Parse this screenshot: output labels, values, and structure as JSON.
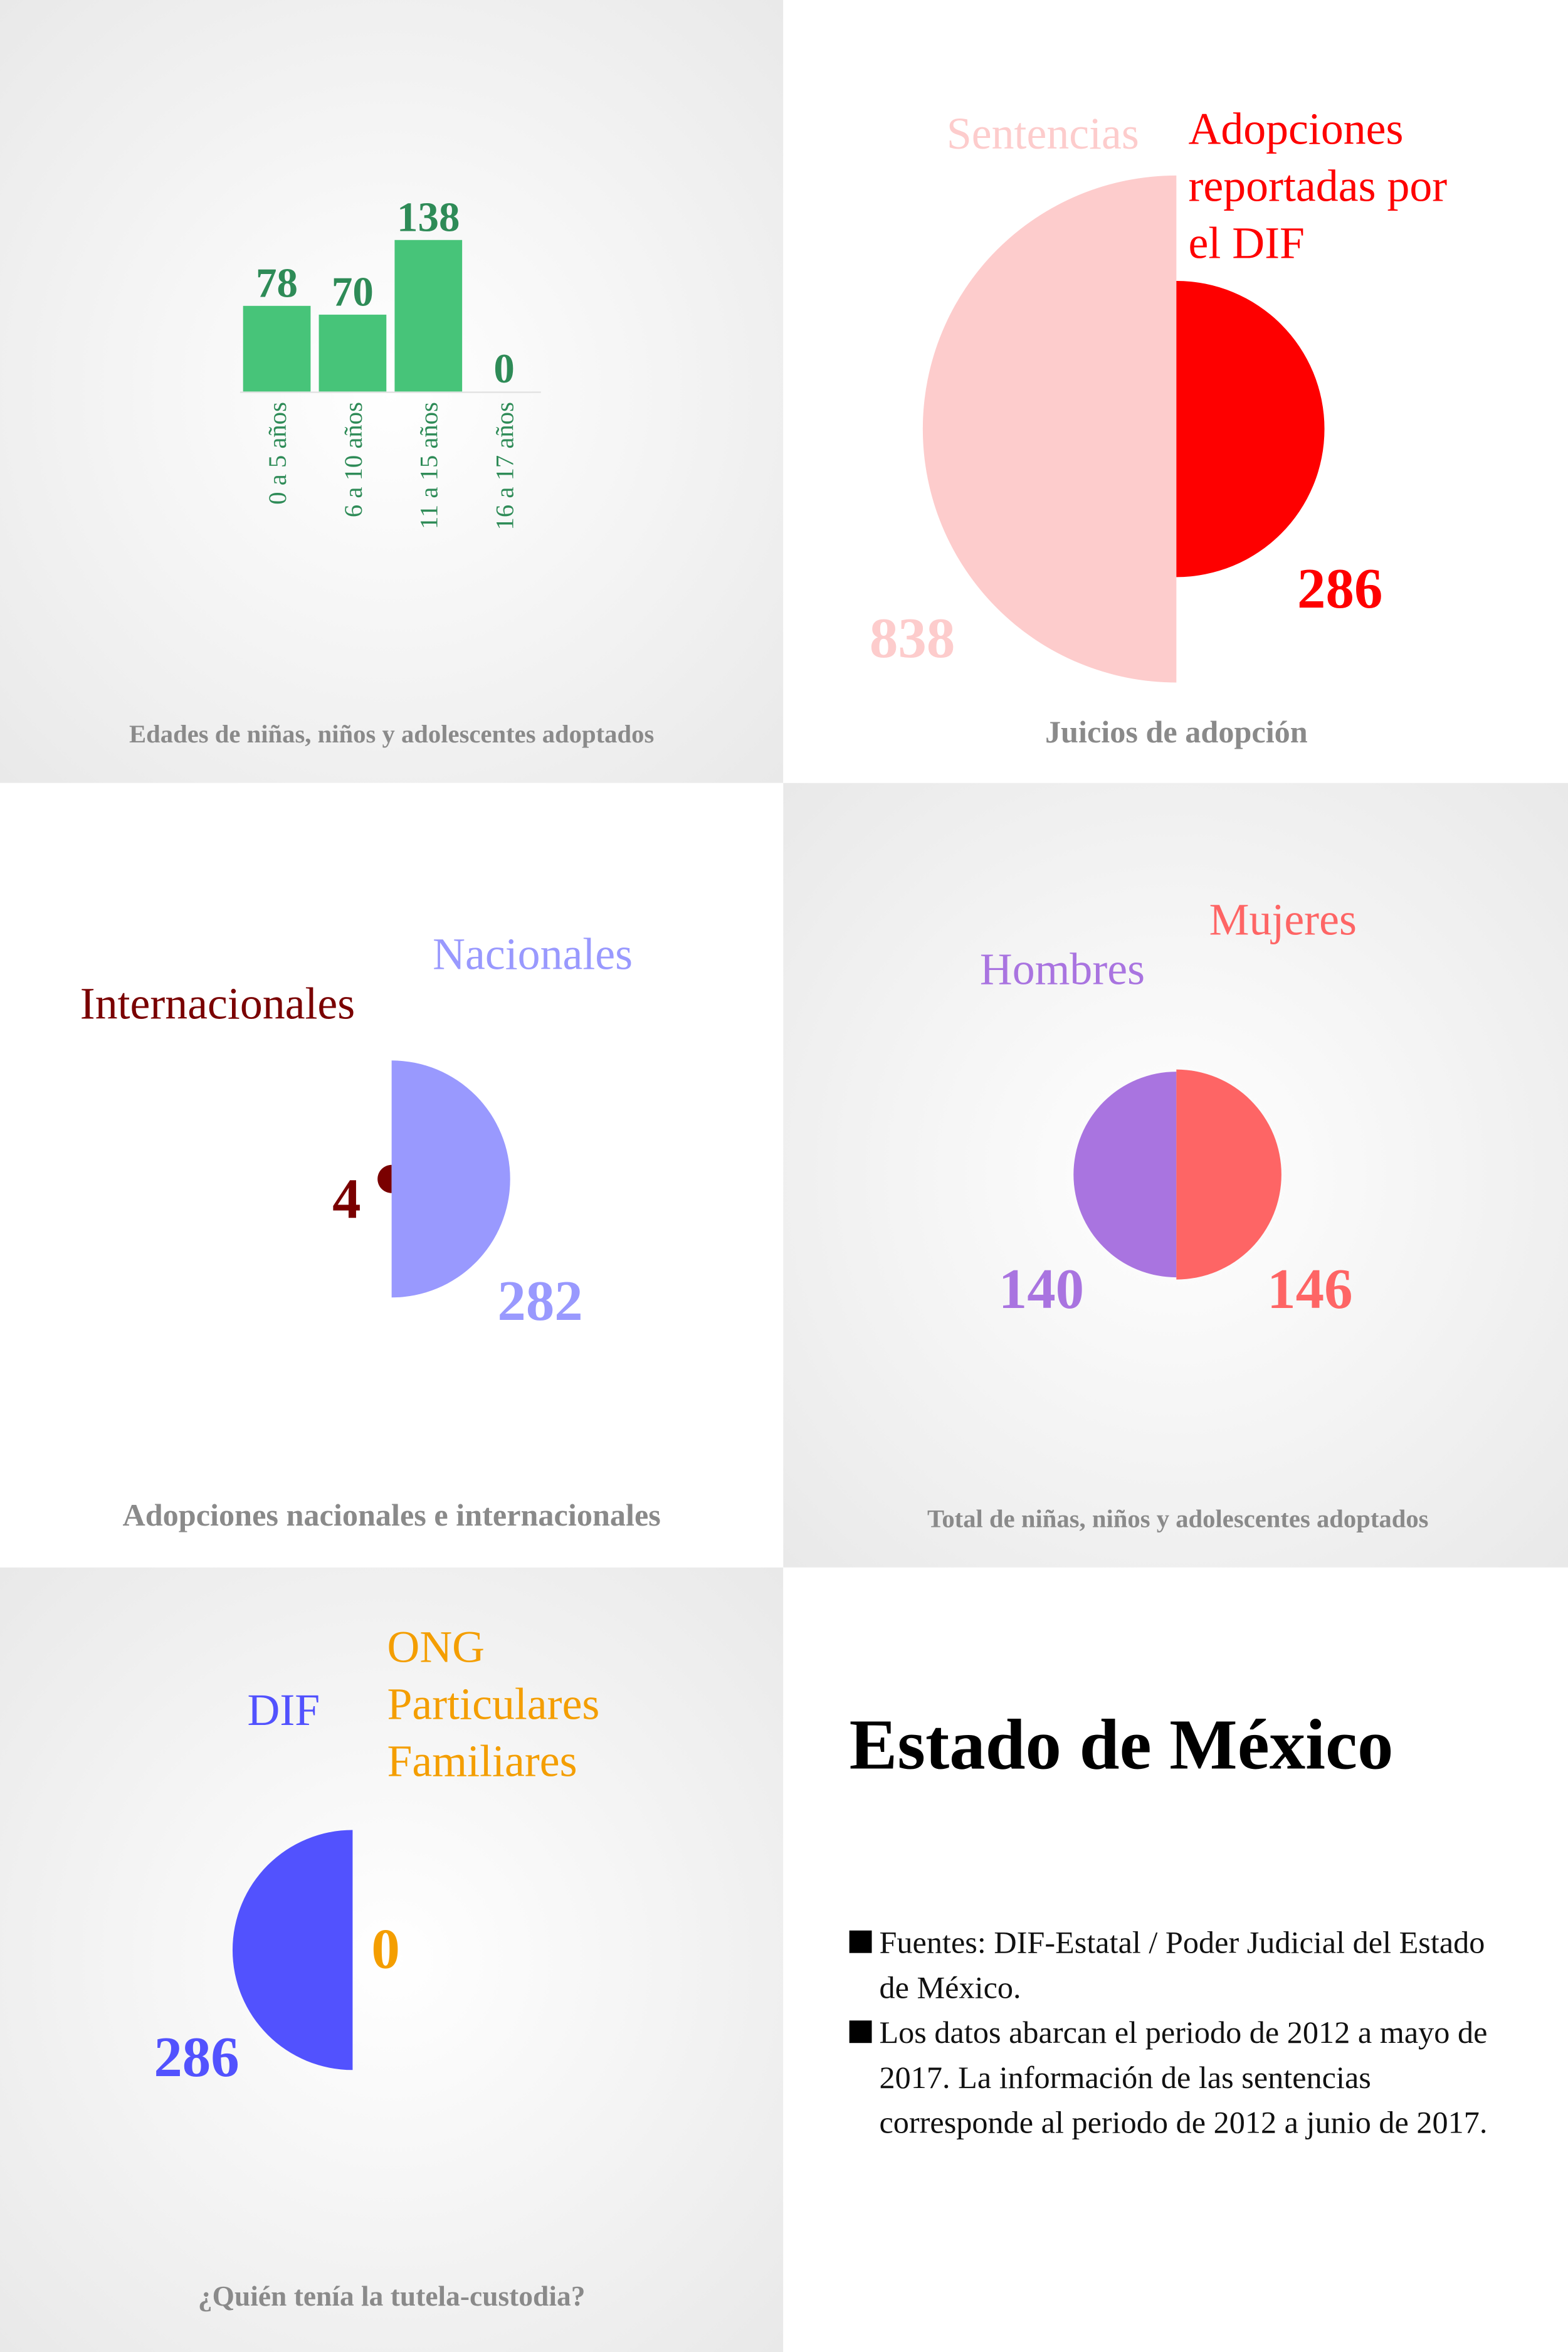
{
  "chart_data": [
    {
      "type": "bar",
      "title": "Edades de niñas, niños y adolescentes adoptados",
      "categories": [
        "0 a 5 años",
        "6 a 10 años",
        "11 a 15 años",
        "16 a 17 años"
      ],
      "values": [
        78,
        70,
        138,
        0
      ],
      "color": "#47c479",
      "label_color": "#2e8b57"
    },
    {
      "type": "half-circle",
      "title": "Juicios de adopción",
      "categories": [
        "Sentencias",
        "Adopciones reportadas por el DIF"
      ],
      "values": [
        838,
        286
      ],
      "colors": [
        "#fdcccc",
        "#fe0000"
      ]
    },
    {
      "type": "half-circle",
      "title": "Adopciones nacionales e internacionales",
      "categories": [
        "Internacionales",
        "Nacionales"
      ],
      "values": [
        4,
        282
      ],
      "colors": [
        "#7a0000",
        "#9999fe"
      ]
    },
    {
      "type": "half-circle",
      "title": "Total de niñas, niños y adolescentes adoptados",
      "categories": [
        "Hombres",
        "Mujeres"
      ],
      "values": [
        140,
        146
      ],
      "colors": [
        "#a974e0",
        "#fe6565"
      ]
    },
    {
      "type": "half-circle",
      "title": "¿Quién tenía la tutela-custodia?",
      "categories": [
        "DIF",
        "ONG Particulares Familiares"
      ],
      "values": [
        286,
        0
      ],
      "colors": [
        "#5252fe",
        "#f49e00"
      ]
    }
  ],
  "notes": {
    "title": "Estado de México",
    "items": [
      "Fuentes: DIF-Estatal / Poder Judicial del Estado de México.",
      "Los datos abarcan el periodo de 2012 a mayo de 2017. La información de las sentencias corresponde al periodo de 2012 a junio de 2017."
    ]
  }
}
